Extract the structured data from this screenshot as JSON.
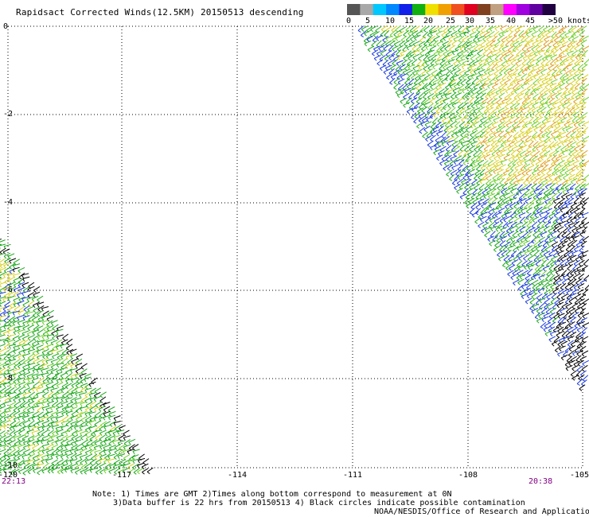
{
  "title": "Rapidsact Corrected Winds(12.5KM) 20150513 descending",
  "colorbar": {
    "labels": [
      "0",
      "5",
      "10",
      "15",
      "20",
      "25",
      "30",
      "35",
      "40",
      "45",
      ">50 knots"
    ],
    "colors": [
      "#555555",
      "#a8a8a8",
      "#00c8ff",
      "#0088ff",
      "#1020e8",
      "#10b010",
      "#f0e000",
      "#f0a000",
      "#f05020",
      "#e00020",
      "#804020",
      "#c0a080",
      "#ff00ff",
      "#a000e0",
      "#6000a0",
      "#200040"
    ]
  },
  "lat_labels": [
    "0",
    "-2",
    "-4",
    "-6",
    "-8",
    "-10"
  ],
  "lon_labels": [
    "-120",
    "-117",
    "-114",
    "-111",
    "-108",
    "-105"
  ],
  "times": {
    "left": "22:13",
    "right": "20:38"
  },
  "notes": {
    "line1": "Note: 1) Times are GMT 2)Times along bottom correspond to measurement at 0N",
    "line2": "3)Data buffer is 22 hrs from 20150513 4) Black circles indicate possible contamination",
    "line3": "NOAA/NESDIS/Office of Research and Applications"
  },
  "swath_colors": {
    "blue": "#1a3adc",
    "green": "#1aa81a",
    "lightgreen": "#6ccf2a",
    "yellow": "#d8d020",
    "orange": "#e09a20",
    "black": "#000000"
  }
}
